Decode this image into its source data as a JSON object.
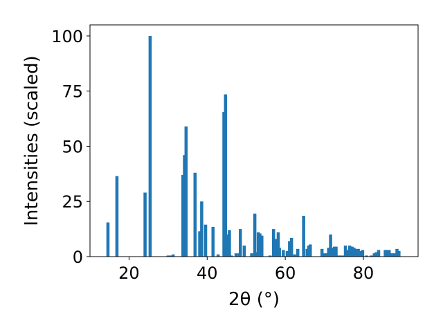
{
  "chart_data": {
    "type": "bar",
    "xlabel": "2θ (°)",
    "ylabel": "Intensities (scaled)",
    "xlim": [
      10,
      94
    ],
    "ylim": [
      0,
      105
    ],
    "xticks": [
      20,
      40,
      60,
      80
    ],
    "yticks": [
      0,
      25,
      50,
      75,
      100
    ],
    "bar_width": 0.8,
    "bar_color": "#1f77b4",
    "grid": false,
    "x": [
      14.6,
      16.9,
      24.1,
      25.4,
      30.0,
      30.6,
      31.3,
      33.8,
      34.2,
      34.6,
      36.9,
      38.1,
      38.6,
      39.6,
      41.5,
      42.8,
      44.3,
      44.7,
      45.2,
      45.7,
      46.2,
      47.4,
      48.2,
      48.5,
      49.5,
      51.4,
      52.2,
      52.7,
      53.1,
      53.5,
      54.0,
      56.1,
      57.0,
      57.7,
      58.2,
      58.5,
      59.5,
      60.5,
      61.1,
      61.6,
      62.4,
      63.2,
      64.7,
      65.6,
      66.0,
      66.4,
      69.4,
      69.9,
      70.5,
      71.1,
      71.6,
      72.1,
      72.6,
      73.0,
      73.5,
      74.1,
      74.9,
      75.4,
      76.0,
      76.5,
      77.1,
      77.6,
      78.2,
      78.7,
      79.3,
      79.8,
      80.8,
      82.0,
      82.8,
      83.3,
      83.9,
      85.6,
      86.1,
      86.6,
      87.4,
      88.0,
      88.6,
      89.1
    ],
    "values": [
      15.5,
      36.5,
      29.0,
      100.0,
      0.5,
      0.5,
      1.0,
      37.0,
      46.0,
      59.0,
      38.0,
      11.5,
      25.0,
      14.5,
      13.5,
      1.0,
      65.5,
      73.5,
      10.0,
      12.0,
      0.5,
      1.5,
      1.5,
      12.5,
      5.0,
      1.5,
      19.5,
      2.0,
      11.0,
      10.5,
      9.5,
      0.5,
      12.5,
      8.0,
      11.0,
      4.0,
      3.0,
      2.5,
      7.0,
      8.5,
      1.0,
      3.5,
      18.5,
      3.5,
      5.0,
      5.5,
      3.5,
      1.5,
      1.5,
      4.0,
      10.0,
      4.0,
      4.5,
      4.5,
      0.5,
      0.5,
      0.5,
      5.0,
      3.0,
      5.0,
      4.5,
      4.0,
      3.5,
      3.5,
      2.5,
      3.0,
      0.5,
      0.5,
      1.5,
      2.0,
      3.0,
      3.0,
      3.0,
      3.0,
      1.5,
      1.5,
      3.5,
      2.5
    ]
  }
}
